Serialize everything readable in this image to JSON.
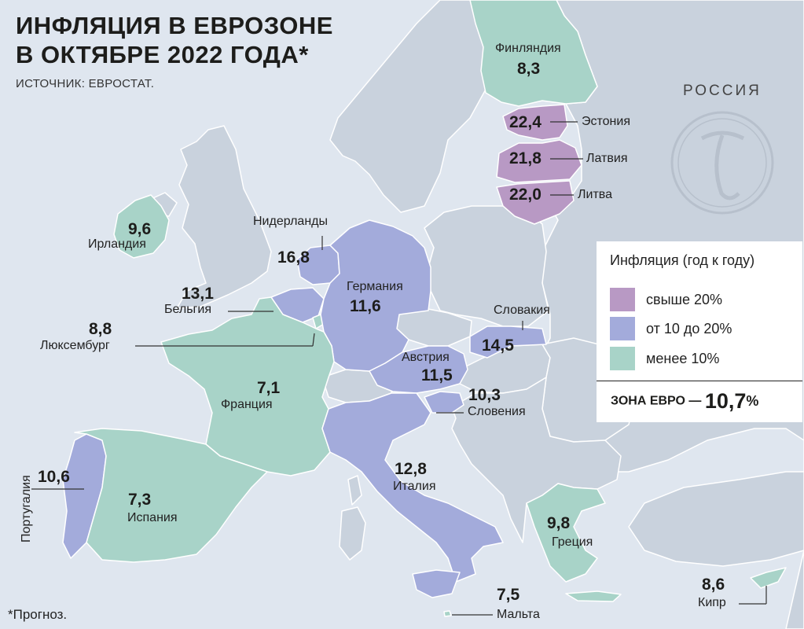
{
  "title_line1": "ИНФЛЯЦИЯ В ЕВРОЗОНЕ",
  "title_line2": "В ОКТЯБРЕ 2022 ГОДА*",
  "source": "ИСТОЧНИК: ЕВРОСТАТ.",
  "footnote": "*Прогноз.",
  "russia_label": "РОССИЯ",
  "colors": {
    "sea": "#dfe6ef",
    "non_euro_land": "#c9d2dd",
    "borders": "#ffffff",
    "above_20": "#b899c4",
    "from_10_to_20": "#a3abdb",
    "below_10": "#a8d3c8"
  },
  "legend": {
    "title": "Инфляция (год к году)",
    "items": [
      {
        "label": "свыше 20%",
        "color": "#b899c4"
      },
      {
        "label": "от 10 до 20%",
        "color": "#a3abdb"
      },
      {
        "label": "менее 10%",
        "color": "#a8d3c8"
      }
    ],
    "eurozone_label": "ЗОНА ЕВРО —",
    "eurozone_value": "10,7",
    "eurozone_unit": "%"
  },
  "countries": {
    "finland": {
      "name": "Финляндия",
      "value": "8,3",
      "category": "менее 10%"
    },
    "estonia": {
      "name": "Эстония",
      "value": "22,4",
      "category": "свыше 20%"
    },
    "latvia": {
      "name": "Латвия",
      "value": "21,8",
      "category": "свыше 20%"
    },
    "lithuania": {
      "name": "Литва",
      "value": "22,0",
      "category": "свыше 20%"
    },
    "ireland": {
      "name": "Ирландия",
      "value": "9,6",
      "category": "менее 10%"
    },
    "netherlands": {
      "name": "Нидерланды",
      "value": "16,8",
      "category": "от 10 до 20%"
    },
    "belgium": {
      "name": "Бельгия",
      "value": "13,1",
      "category": "от 10 до 20%"
    },
    "luxembourg": {
      "name": "Люксембург",
      "value": "8,8",
      "category": "менее 10%"
    },
    "germany": {
      "name": "Германия",
      "value": "11,6",
      "category": "от 10 до 20%"
    },
    "slovakia": {
      "name": "Словакия",
      "value": "14,5",
      "category": "от 10 до 20%"
    },
    "austria": {
      "name": "Австрия",
      "value": "11,5",
      "category": "от 10 до 20%"
    },
    "slovenia": {
      "name": "Словения",
      "value": "10,3",
      "category": "от 10 до 20%"
    },
    "france": {
      "name": "Франция",
      "value": "7,1",
      "category": "менее 10%"
    },
    "portugal": {
      "name": "Португалия",
      "value": "10,6",
      "category": "от 10 до 20%"
    },
    "spain": {
      "name": "Испания",
      "value": "7,3",
      "category": "менее 10%"
    },
    "italy": {
      "name": "Италия",
      "value": "12,8",
      "category": "от 10 до 20%"
    },
    "greece": {
      "name": "Греция",
      "value": "9,8",
      "category": "менее 10%"
    },
    "malta": {
      "name": "Мальта",
      "value": "7,5",
      "category": "менее 10%"
    },
    "cyprus": {
      "name": "Кипр",
      "value": "8,6",
      "category": "менее 10%"
    }
  }
}
